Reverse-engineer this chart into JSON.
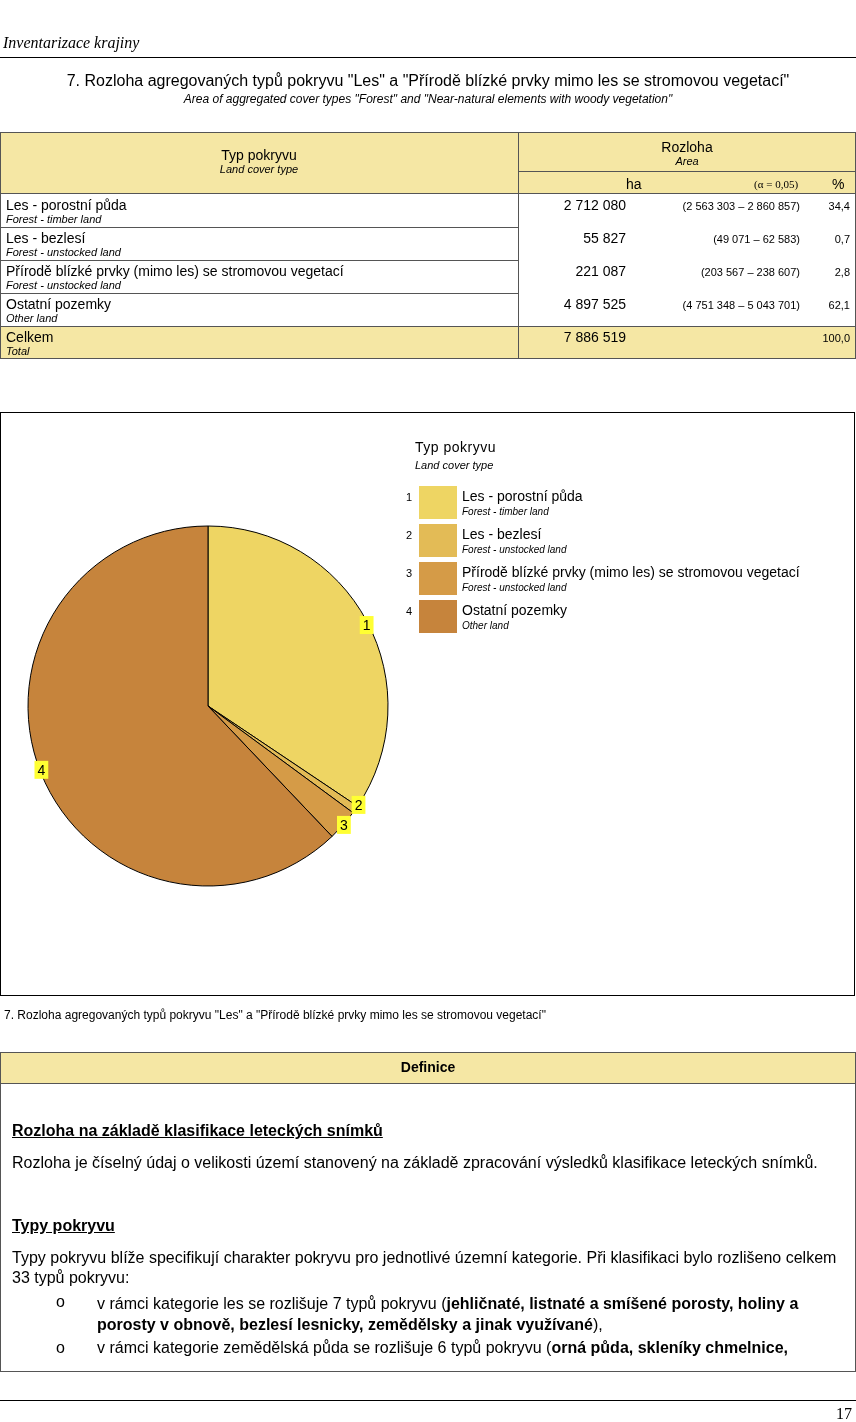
{
  "chart_data": {
    "type": "pie",
    "title": "7. Rozloha agregovaných typů pokryvu \"Les\" a \"Přírodě blízké prvky mimo les se stromovou vegetací\"",
    "subtitle": "Area of aggregated cover types \"Forest\" and  \"Near-natural elements with woody vegetation\"",
    "categories": [
      "Les - porostní půda",
      "Les - bezlesí",
      "Přírodě blízké prvky (mimo les) se stromovou vegetací",
      "Ostatní pozemky"
    ],
    "values": [
      34.4,
      0.7,
      2.8,
      62.1
    ],
    "colors": [
      "#eed563",
      "#e3bb56",
      "#d59b47",
      "#c6843c"
    ],
    "legend": "right",
    "legend_title": "Typ pokryvu",
    "annotations": [
      "Inventarizace krajiny",
      "Typ pokryvu",
      "Land cover type",
      "Rozloha",
      "Area",
      "ha",
      "(α = 0,05)",
      "%",
      "Les - porostní půda",
      "Forest - timber land",
      "2 712 080",
      "(2 563 303 – 2 860 857)",
      "34,4",
      "Les - bezlesí",
      "Forest - unstocked land",
      "55 827",
      "(49 071  –  62 583)",
      "0,7",
      "Přírodě blízké prvky (mimo les) se stromovou vegetací",
      "Forest - unstocked land",
      "221 087",
      "(203 567  –  238 607)",
      "2,8",
      "Ostatní pozemky",
      "Other land",
      "4 897 525",
      "(4 751 348 – 5 043 701)",
      "62,1",
      "Celkem",
      "Total",
      "7 886 519",
      "100,0",
      "Land cover type",
      "7. Rozloha agregovaných typů pokryvu \"Les\" a \"Přírodě blízké prvky mimo les se stromovou vegetací\"",
      "Definice",
      "Rozloha na základě klasifikace leteckých snímků",
      "Rozloha je číselný údaj o velikosti území stanovený na základě zpracování výsledků klasifikace leteckých snímků.",
      "Typy pokryvu",
      "Typy pokryvu blíže specifikují charakter pokryvu pro jednotlivé územní kategorie. Při klasifikaci bylo rozlišeno celkem 33 typů pokryvu:",
      "v rámci kategorie les se rozlišuje 7 typů pokryvu (",
      "jehličnaté, listnaté a smíšené porosty, holiny a porosty v obnově, bezlesí lesnicky, zemědělsky a jinak využívané",
      "),",
      "v rámci kategorie zemědělská půda se rozlišuje 6 typů pokryvu (",
      "orná půda, skleníky chmelnice,",
      "o",
      "17",
      "1",
      "2",
      "3",
      "4"
    ]
  }
}
